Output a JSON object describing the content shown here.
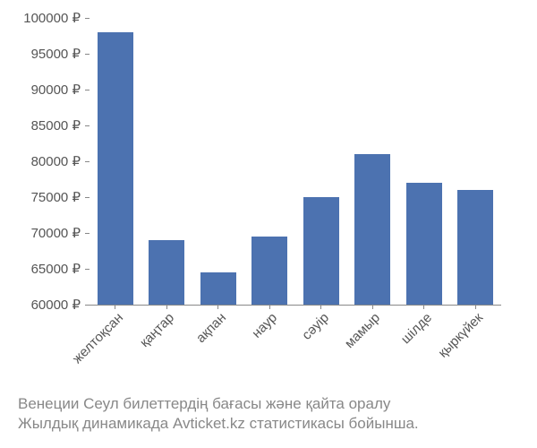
{
  "chart": {
    "type": "bar",
    "categories": [
      "желтоқсан",
      "қаңтар",
      "ақпан",
      "наур",
      "сәуір",
      "мамыр",
      "шілде",
      "қыркүйек"
    ],
    "values": [
      98000,
      69000,
      64500,
      69500,
      75000,
      81000,
      77000,
      76000
    ],
    "bar_color": "#4c72b0",
    "ylim": [
      60000,
      100000
    ],
    "yticks": [
      60000,
      65000,
      70000,
      75000,
      80000,
      85000,
      90000,
      95000,
      100000
    ],
    "ytick_labels": [
      "60000 ₽",
      "65000 ₽",
      "70000 ₽",
      "75000 ₽",
      "80000 ₽",
      "85000 ₽",
      "90000 ₽",
      "95000 ₽",
      "100000 ₽"
    ],
    "bar_width_ratio": 0.7,
    "background_color": "#ffffff",
    "axis_color": "#888888",
    "tick_label_color": "#555555",
    "tick_fontsize": 15,
    "xlabel_rotation": -45
  },
  "caption": {
    "line1": "Венеции Сеул билеттердің бағасы және қайта оралу",
    "line2": "Жылдық динамикада Avticket.kz статистикасы бойынша.",
    "color": "#888888",
    "fontsize": 17
  }
}
